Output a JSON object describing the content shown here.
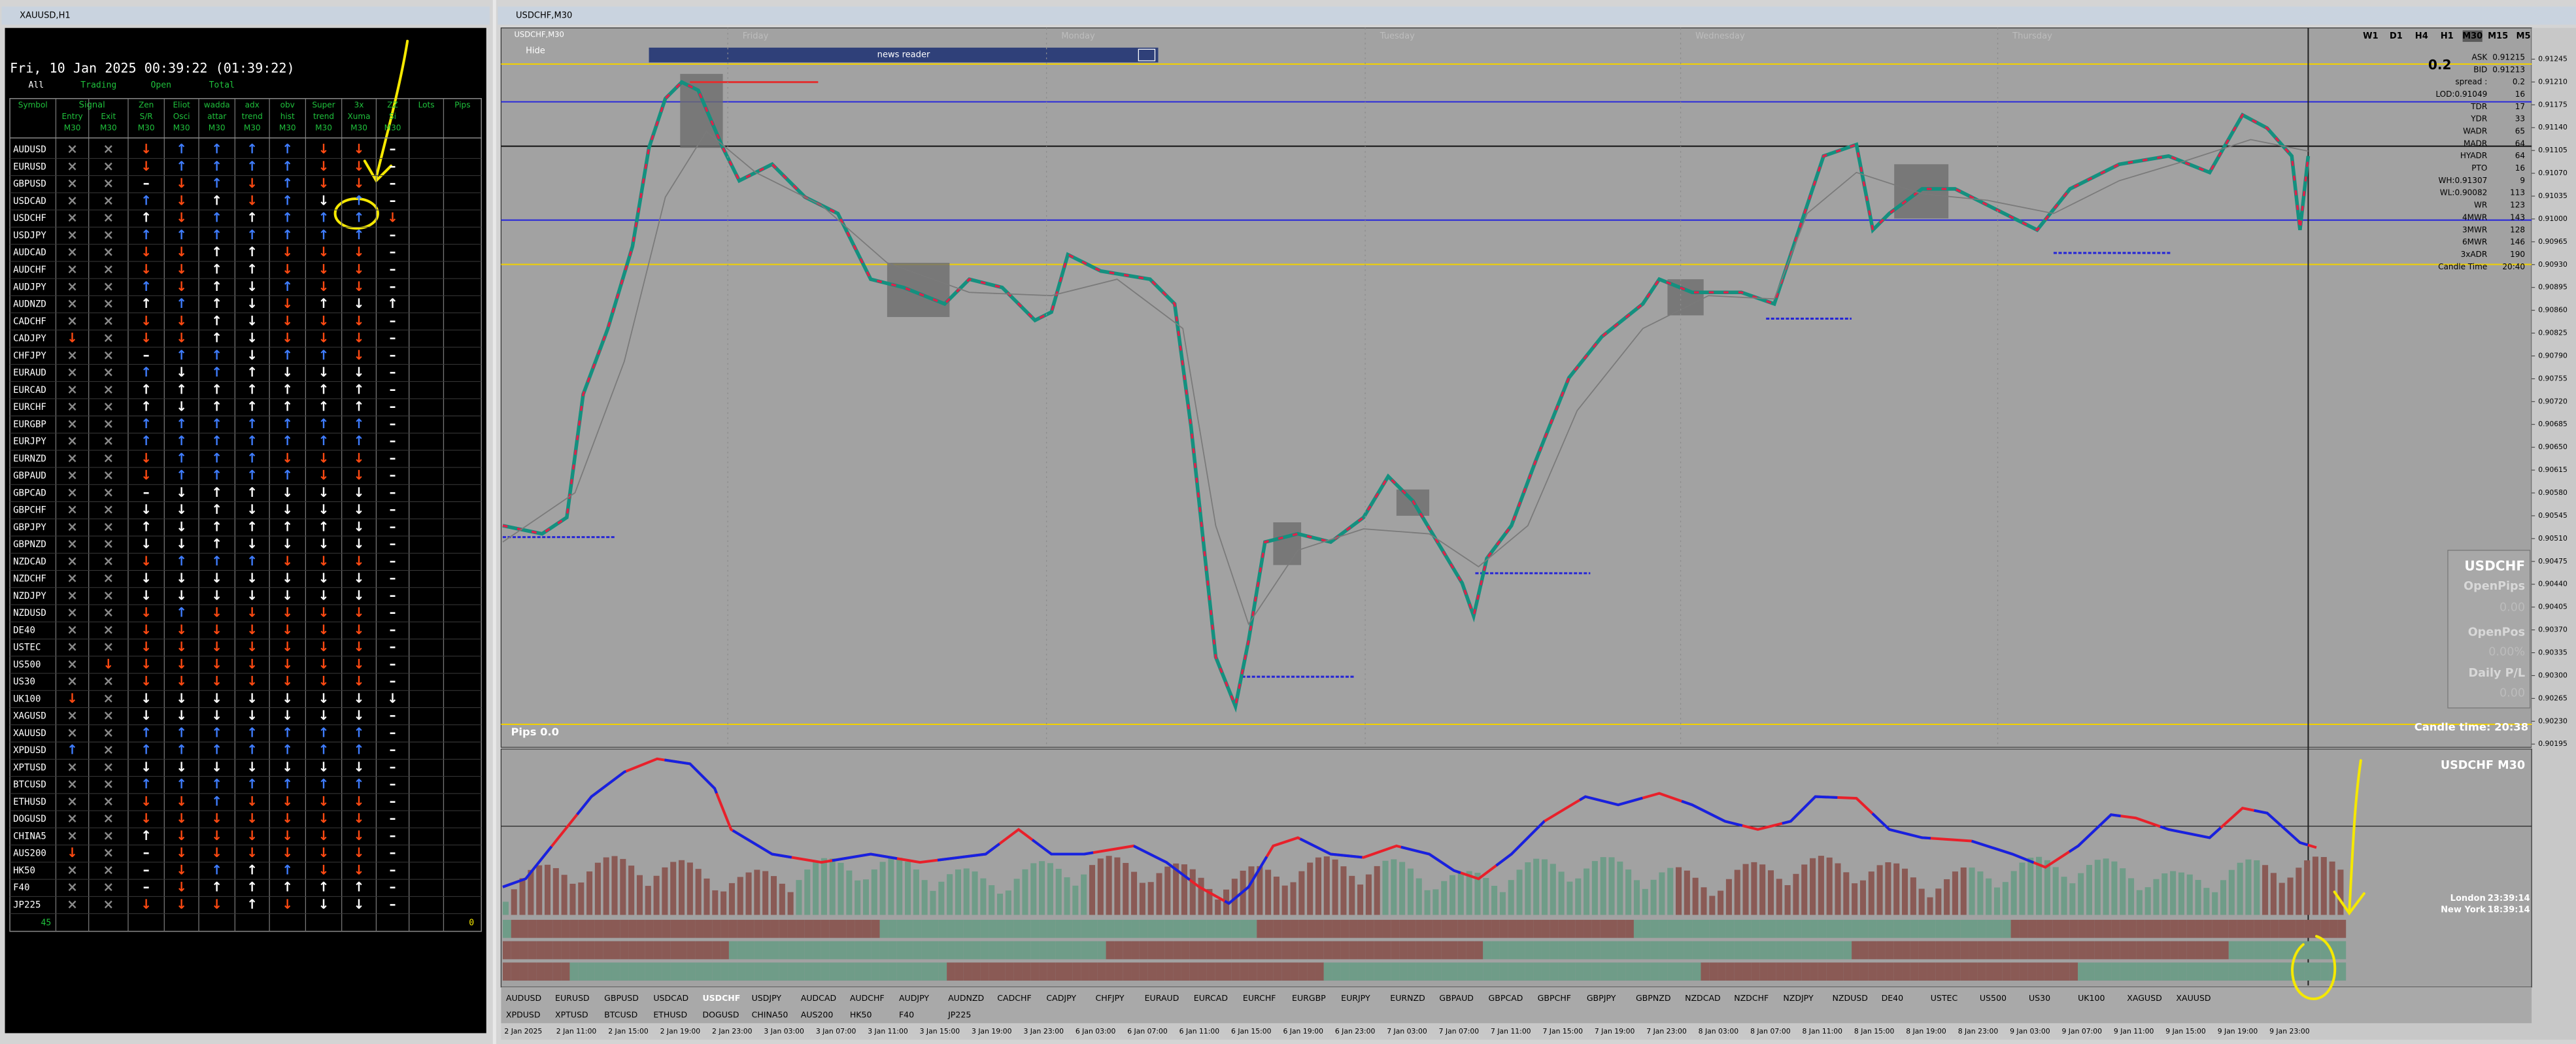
{
  "left_window": {
    "title": "XAUUSD,H1",
    "clock": "Fri, 10 Jan 2025 00:39:22 (01:39:22)",
    "tabs": [
      "All",
      "Trading",
      "Open",
      "Total"
    ],
    "signal_header": "Signal",
    "headers": [
      [
        "Symbol"
      ],
      [
        "Entry",
        "M30"
      ],
      [
        "Exit",
        "M30"
      ],
      [
        "Zen",
        "S/R",
        "M30"
      ],
      [
        "Eliot",
        "Osci",
        "M30"
      ],
      [
        "wadda",
        "attar",
        "M30"
      ],
      [
        "adx",
        "trend",
        "M30"
      ],
      [
        "obv",
        "hist",
        "M30"
      ],
      [
        "Super",
        "trend",
        "M30"
      ],
      [
        "3x",
        "Xuma",
        "M30"
      ],
      [
        "ZZ",
        "Si",
        "M30"
      ],
      [
        "Lots"
      ],
      [
        "Pips"
      ]
    ],
    "rows": [
      {
        "symbol": "AUDUSD",
        "cells": [
          "×",
          "×",
          "↓",
          "↑",
          "↑",
          "↑",
          "↑",
          "↓",
          "↓",
          "–"
        ],
        "tones": "ggrbbbbrrw"
      },
      {
        "symbol": "EURUSD",
        "cells": [
          "×",
          "×",
          "↓",
          "↑",
          "↑",
          "↑",
          "↑",
          "↓",
          "↓",
          "–"
        ],
        "tones": "ggrbbbbrrw"
      },
      {
        "symbol": "GBPUSD",
        "cells": [
          "×",
          "×",
          "–",
          "↓",
          "↑",
          "↓",
          "↑",
          "↓",
          "↓",
          "–"
        ],
        "tones": "ggwrbrbrrw"
      },
      {
        "symbol": "USDCAD",
        "cells": [
          "×",
          "×",
          "↑",
          "↓",
          "↑",
          "↓",
          "↑",
          "↓",
          "↑",
          "–"
        ],
        "tones": "ggbrwrbwbw"
      },
      {
        "symbol": "USDCHF",
        "cells": [
          "×",
          "×",
          "↑",
          "↓",
          "↑",
          "↑",
          "↑",
          "↑",
          "↑",
          "↓"
        ],
        "tones": "ggwrbwbbbr"
      },
      {
        "symbol": "USDJPY",
        "cells": [
          "×",
          "×",
          "↑",
          "↑",
          "↑",
          "↑",
          "↑",
          "↑",
          "↑",
          "–"
        ],
        "tones": "ggbbbbbbbw"
      },
      {
        "symbol": "AUDCAD",
        "cells": [
          "×",
          "×",
          "↓",
          "↓",
          "↑",
          "↑",
          "↓",
          "↓",
          "↓",
          "–"
        ],
        "tones": "ggrrwwrrrw"
      },
      {
        "symbol": "AUDCHF",
        "cells": [
          "×",
          "×",
          "↓",
          "↓",
          "↑",
          "↑",
          "↓",
          "↓",
          "↓",
          "–"
        ],
        "tones": "ggrrwwrrrw"
      },
      {
        "symbol": "AUDJPY",
        "cells": [
          "×",
          "×",
          "↑",
          "↓",
          "↑",
          "↓",
          "↑",
          "↓",
          "↓",
          "–"
        ],
        "tones": "ggbrwwbrrw"
      },
      {
        "symbol": "AUDNZD",
        "cells": [
          "×",
          "×",
          "↑",
          "↑",
          "↑",
          "↓",
          "↓",
          "↑",
          "↓",
          "↑"
        ],
        "tones": "ggwbwwrwww"
      },
      {
        "symbol": "CADCHF",
        "cells": [
          "×",
          "×",
          "↓",
          "↓",
          "↑",
          "↓",
          "↓",
          "↓",
          "↓",
          "–"
        ],
        "tones": "ggrrwwrrrw"
      },
      {
        "symbol": "CADJPY",
        "cells": [
          "↓",
          "×",
          "↓",
          "↓",
          "↑",
          "↓",
          "↓",
          "↓",
          "↓",
          "–"
        ],
        "tones": "rgrrwwrrrw"
      },
      {
        "symbol": "CHFJPY",
        "cells": [
          "×",
          "×",
          "–",
          "↑",
          "↑",
          "↓",
          "↑",
          "↑",
          "↓",
          "–"
        ],
        "tones": "ggwbbwbbrw"
      },
      {
        "symbol": "EURAUD",
        "cells": [
          "×",
          "×",
          "↑",
          "↓",
          "↑",
          "↑",
          "↓",
          "↓",
          "↓",
          "–"
        ],
        "tones": "ggbwbwwwww"
      },
      {
        "symbol": "EURCAD",
        "cells": [
          "×",
          "×",
          "↑",
          "↑",
          "↑",
          "↑",
          "↑",
          "↑",
          "↑",
          "–"
        ],
        "tones": "ggwwwwwwww"
      },
      {
        "symbol": "EURCHF",
        "cells": [
          "×",
          "×",
          "↑",
          "↓",
          "↑",
          "↑",
          "↑",
          "↑",
          "↑",
          "–"
        ],
        "tones": "ggwwwwwwww"
      },
      {
        "symbol": "EURGBP",
        "cells": [
          "×",
          "×",
          "↑",
          "↑",
          "↑",
          "↑",
          "↑",
          "↑",
          "↑",
          "–"
        ],
        "tones": "ggbbbbbbbw"
      },
      {
        "symbol": "EURJPY",
        "cells": [
          "×",
          "×",
          "↑",
          "↑",
          "↑",
          "↑",
          "↑",
          "↑",
          "↑",
          "–"
        ],
        "tones": "ggbbbbbbbw"
      },
      {
        "symbol": "EURNZD",
        "cells": [
          "×",
          "×",
          "↓",
          "↑",
          "↑",
          "↑",
          "↓",
          "↓",
          "↓",
          "–"
        ],
        "tones": "ggrbbbrrrw"
      },
      {
        "symbol": "GBPAUD",
        "cells": [
          "×",
          "×",
          "↓",
          "↑",
          "↑",
          "↑",
          "↑",
          "↓",
          "↓",
          "–"
        ],
        "tones": "ggrbbbbrrw"
      },
      {
        "symbol": "GBPCAD",
        "cells": [
          "×",
          "×",
          "–",
          "↓",
          "↑",
          "↑",
          "↓",
          "↓",
          "↓",
          "–"
        ],
        "tones": "ggwwwwwwww"
      },
      {
        "symbol": "GBPCHF",
        "cells": [
          "×",
          "×",
          "↓",
          "↓",
          "↑",
          "↓",
          "↓",
          "↓",
          "↓",
          "–"
        ],
        "tones": "ggwwwwwwww"
      },
      {
        "symbol": "GBPJPY",
        "cells": [
          "×",
          "×",
          "↑",
          "↓",
          "↑",
          "↑",
          "↑",
          "↑",
          "↓",
          "–"
        ],
        "tones": "ggwwwwwwww"
      },
      {
        "symbol": "GBPNZD",
        "cells": [
          "×",
          "×",
          "↓",
          "↓",
          "↑",
          "↓",
          "↓",
          "↓",
          "↓",
          "–"
        ],
        "tones": "ggwwwwwwww"
      },
      {
        "symbol": "NZDCAD",
        "cells": [
          "×",
          "×",
          "↓",
          "↑",
          "↑",
          "↑",
          "↓",
          "↓",
          "↓",
          "–"
        ],
        "tones": "ggrbbbrrrw"
      },
      {
        "symbol": "NZDCHF",
        "cells": [
          "×",
          "×",
          "↓",
          "↓",
          "↓",
          "↓",
          "↓",
          "↓",
          "↓",
          "–"
        ],
        "tones": "ggwwwwwwww"
      },
      {
        "symbol": "NZDJPY",
        "cells": [
          "×",
          "×",
          "↓",
          "↓",
          "↓",
          "↓",
          "↓",
          "↓",
          "↓",
          "–"
        ],
        "tones": "ggwwwwwwww"
      },
      {
        "symbol": "NZDUSD",
        "cells": [
          "×",
          "×",
          "↓",
          "↑",
          "↓",
          "↓",
          "↓",
          "↓",
          "↓",
          "–"
        ],
        "tones": "ggrbrrrrrw"
      },
      {
        "symbol": "DE40",
        "cells": [
          "×",
          "×",
          "↓",
          "↓",
          "↓",
          "↓",
          "↓",
          "↓",
          "↓",
          "–"
        ],
        "tones": "ggrrrrrrrw"
      },
      {
        "symbol": "USTEC",
        "cells": [
          "×",
          "×",
          "↓",
          "↓",
          "↓",
          "↓",
          "↓",
          "↓",
          "↓",
          "–"
        ],
        "tones": "ggrrrrrrrw"
      },
      {
        "symbol": "US500",
        "cells": [
          "×",
          "↓",
          "↓",
          "↓",
          "↓",
          "↓",
          "↓",
          "↓",
          "↓",
          "–"
        ],
        "tones": "grrrrrrrrw"
      },
      {
        "symbol": "US30",
        "cells": [
          "×",
          "×",
          "↓",
          "↓",
          "↓",
          "↓",
          "↓",
          "↓",
          "↓",
          "–"
        ],
        "tones": "ggrrrrrrrw"
      },
      {
        "symbol": "UK100",
        "cells": [
          "↓",
          "×",
          "↓",
          "↓",
          "↓",
          "↓",
          "↓",
          "↓",
          "↓",
          "↓"
        ],
        "tones": "rgwwwwwwww"
      },
      {
        "symbol": "XAGUSD",
        "cells": [
          "×",
          "×",
          "↓",
          "↓",
          "↓",
          "↓",
          "↓",
          "↓",
          "↓",
          "–"
        ],
        "tones": "ggwwwwwwww"
      },
      {
        "symbol": "XAUUSD",
        "cells": [
          "×",
          "×",
          "↑",
          "↑",
          "↑",
          "↑",
          "↑",
          "↑",
          "↑",
          "–"
        ],
        "tones": "ggbbbbbbbw"
      },
      {
        "symbol": "XPDUSD",
        "cells": [
          "↑",
          "×",
          "↑",
          "↑",
          "↑",
          "↑",
          "↑",
          "↑",
          "↑",
          "–"
        ],
        "tones": "bgbbbbbbbw"
      },
      {
        "symbol": "XPTUSD",
        "cells": [
          "×",
          "×",
          "↓",
          "↓",
          "↓",
          "↓",
          "↓",
          "↓",
          "↓",
          "–"
        ],
        "tones": "ggwwwwwwww"
      },
      {
        "symbol": "BTCUSD",
        "cells": [
          "×",
          "×",
          "↑",
          "↑",
          "↑",
          "↑",
          "↑",
          "↑",
          "↑",
          "–"
        ],
        "tones": "ggbbbbbbbw"
      },
      {
        "symbol": "ETHUSD",
        "cells": [
          "×",
          "×",
          "↓",
          "↓",
          "↑",
          "↓",
          "↓",
          "↓",
          "↓",
          "–"
        ],
        "tones": "ggrrbrrrrw"
      },
      {
        "symbol": "DOGUSD",
        "cells": [
          "×",
          "×",
          "↓",
          "↓",
          "↓",
          "↓",
          "↓",
          "↓",
          "↓",
          "–"
        ],
        "tones": "ggrrrrrrrw"
      },
      {
        "symbol": "CHINA5",
        "cells": [
          "×",
          "×",
          "↑",
          "↓",
          "↓",
          "↓",
          "↓",
          "↓",
          "↓",
          "–"
        ],
        "tones": "ggwrrrrrrw"
      },
      {
        "symbol": "AUS200",
        "cells": [
          "↓",
          "×",
          "–",
          "↓",
          "↓",
          "↓",
          "↓",
          "↓",
          "↓",
          "–"
        ],
        "tones": "rgwrrrrrrw"
      },
      {
        "symbol": "HK50",
        "cells": [
          "×",
          "×",
          "–",
          "↓",
          "↑",
          "↑",
          "↑",
          "↓",
          "↓",
          "–"
        ],
        "tones": "ggwrbwbrrw"
      },
      {
        "symbol": "F40",
        "cells": [
          "×",
          "×",
          "–",
          "↓",
          "↑",
          "↑",
          "↑",
          "↑",
          "↑",
          "–"
        ],
        "tones": "ggwrwwwwww"
      },
      {
        "symbol": "JP225",
        "cells": [
          "×",
          "×",
          "↓",
          "↓",
          "↓",
          "↑",
          "↓",
          "↓",
          "↓",
          "–"
        ],
        "tones": "ggrrrwrwww"
      }
    ],
    "footer_count": "45",
    "footer_pips": "0"
  },
  "chart_window": {
    "title": "USDCHF,M30",
    "symbol_select": "USDCHF,M30",
    "hide": "Hide",
    "news_reader": "news reader",
    "timeframes": [
      "W1",
      "D1",
      "H4",
      "H1",
      "M30",
      "M15",
      "M5"
    ],
    "active_timeframe_index": 4,
    "day_labels": [
      "Friday",
      "Monday",
      "Tuesday",
      "Wednesday",
      "Thursday"
    ],
    "spread_big": "0.2",
    "info_rows": [
      [
        "ASK",
        "0.91215"
      ],
      [
        "BID",
        "0.91213"
      ],
      [
        "spread :",
        "0.2"
      ],
      [
        "LOD:0.91049",
        "16"
      ],
      [
        "TDR",
        "17"
      ],
      [
        "YDR",
        "33"
      ],
      [
        "WADR",
        "65"
      ],
      [
        "MADR",
        "64"
      ],
      [
        "HYADR",
        "64"
      ],
      [
        "PTO",
        "16"
      ],
      [
        "WH:0.91307",
        "9"
      ],
      [
        "WL:0.90082",
        "113"
      ],
      [
        "WR",
        "123"
      ],
      [
        "4MWR",
        "143"
      ],
      [
        "3MWR",
        "128"
      ],
      [
        "6MWR",
        "146"
      ],
      [
        "3xADR",
        "190"
      ],
      [
        "Candle Time",
        "20:40"
      ]
    ],
    "box": {
      "symbol": "USDCHF",
      "open_pips_label": "OpenPips",
      "open_pips": "0.00",
      "open_pos_label": "OpenPos",
      "open_pos": "0.00%",
      "daily_label": "Daily P/L",
      "daily": "0.00"
    },
    "candle_time": "Candle time:  20:38",
    "pips": "Pips 0.0",
    "indicator_title": "USDCHF  M30",
    "london_label": "London",
    "london_time": "23:39:14",
    "ny_label": "New York",
    "ny_time": "18:39:14",
    "price_labels": [
      "0.91245",
      "0.91210",
      "0.91175",
      "0.91140",
      "0.91105",
      "0.91070",
      "0.91035",
      "0.91000",
      "0.90965",
      "0.90930",
      "0.90895",
      "0.90860",
      "0.90825",
      "0.90790",
      "0.90755",
      "0.90720",
      "0.90685",
      "0.90650",
      "0.90615",
      "0.90580",
      "0.90545",
      "0.90510",
      "0.90475",
      "0.90440",
      "0.90405",
      "0.90370",
      "0.90335",
      "0.90300",
      "0.90265",
      "0.90230",
      "0.90195"
    ],
    "time_labels": [
      "2 Jan 2025",
      "2 Jan 11:00",
      "2 Jan 15:00",
      "2 Jan 19:00",
      "2 Jan 23:00",
      "3 Jan 03:00",
      "3 Jan 07:00",
      "3 Jan 11:00",
      "3 Jan 15:00",
      "3 Jan 19:00",
      "3 Jan 23:00",
      "6 Jan 03:00",
      "6 Jan 07:00",
      "6 Jan 11:00",
      "6 Jan 15:00",
      "6 Jan 19:00",
      "6 Jan 23:00",
      "7 Jan 03:00",
      "7 Jan 07:00",
      "7 Jan 11:00",
      "7 Jan 15:00",
      "7 Jan 19:00",
      "7 Jan 23:00",
      "8 Jan 03:00",
      "8 Jan 07:00",
      "8 Jan 11:00",
      "8 Jan 15:00",
      "8 Jan 19:00",
      "8 Jan 23:00",
      "9 Jan 03:00",
      "9 Jan 07:00",
      "9 Jan 11:00",
      "9 Jan 15:00",
      "9 Jan 19:00",
      "9 Jan 23:00"
    ],
    "tabs_row1": [
      "AUDUSD",
      "EURUSD",
      "GBPUSD",
      "USDCAD",
      "USDCHF",
      "USDJPY",
      "AUDCAD",
      "AUDCHF",
      "AUDJPY",
      "AUDNZD",
      "CADCHF",
      "CADJPY",
      "CHFJPY",
      "EURAUD",
      "EURCAD",
      "EURCHF",
      "EURGBP",
      "EURJPY",
      "EURNZD",
      "GBPAUD",
      "GBPCAD",
      "GBPCHF",
      "GBPJPY",
      "GBPNZD",
      "NZDCAD",
      "NZDCHF",
      "NZDJPY",
      "NZDUSD",
      "DE40",
      "USTEC",
      "US500",
      "US30",
      "UK100",
      "XAGUSD",
      "XAUUSD"
    ],
    "tabs_row2": [
      "XPDUSD",
      "XPTUSD",
      "BTCUSD",
      "ETHUSD",
      "DOGUSD",
      "CHINA50",
      "AUS200",
      "HK50",
      "F40",
      "JP225"
    ],
    "active_tab_index": 4
  }
}
